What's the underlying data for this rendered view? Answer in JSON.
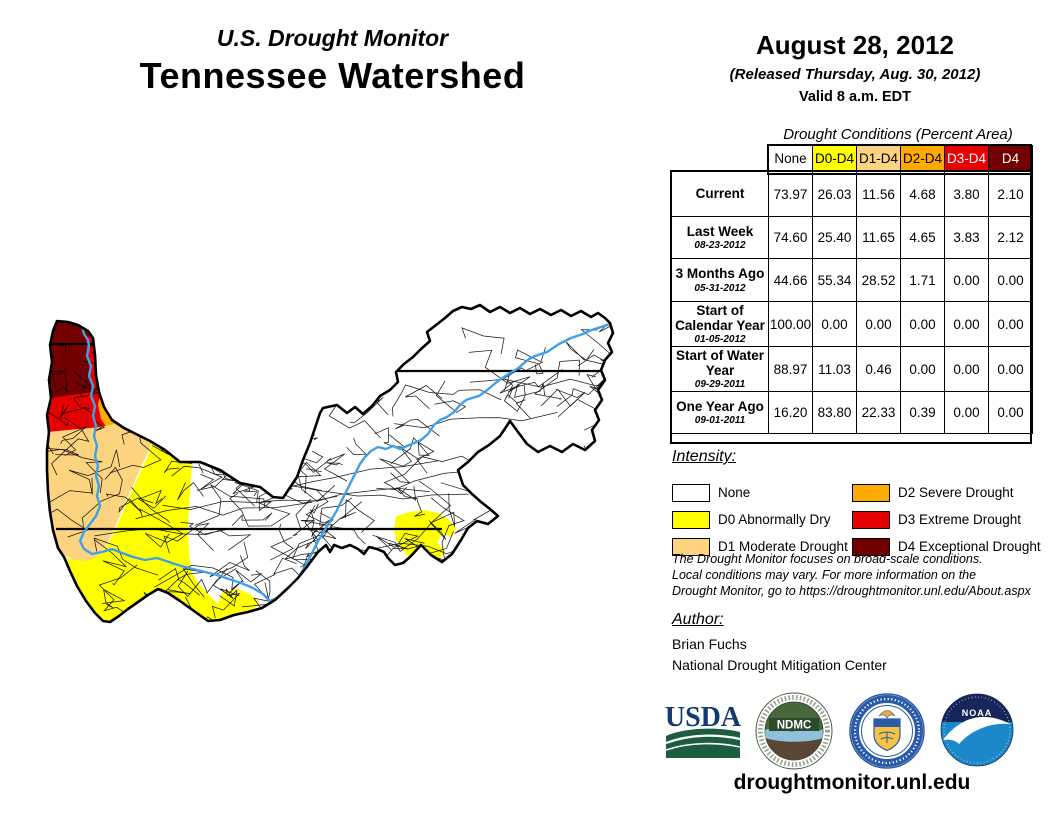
{
  "title": {
    "line1": "U.S. Drought Monitor",
    "line2": "Tennessee Watershed"
  },
  "date_block": {
    "date": "August 28, 2012",
    "released": "(Released Thursday, Aug. 30, 2012)",
    "valid": "Valid 8 a.m. EDT"
  },
  "table": {
    "caption": "Drought Conditions (Percent Area)",
    "columns": [
      "None",
      "D0-D4",
      "D1-D4",
      "D2-D4",
      "D3-D4",
      "D4"
    ],
    "column_keys": [
      "none",
      "d0",
      "d1",
      "d2",
      "d3",
      "d4"
    ],
    "rows": [
      {
        "label": "Current",
        "date": "",
        "values": [
          "73.97",
          "26.03",
          "11.56",
          "4.68",
          "3.80",
          "2.10"
        ]
      },
      {
        "label": "Last Week",
        "date": "08-23-2012",
        "values": [
          "74.60",
          "25.40",
          "11.65",
          "4.65",
          "3.83",
          "2.12"
        ]
      },
      {
        "label": "3 Months Ago",
        "date": "05-31-2012",
        "values": [
          "44.66",
          "55.34",
          "28.52",
          "1.71",
          "0.00",
          "0.00"
        ]
      },
      {
        "label": "Start of Calendar Year",
        "date": "01-05-2012",
        "values": [
          "100.00",
          "0.00",
          "0.00",
          "0.00",
          "0.00",
          "0.00"
        ]
      },
      {
        "label": "Start of Water Year",
        "date": "09-29-2011",
        "values": [
          "88.97",
          "11.03",
          "0.46",
          "0.00",
          "0.00",
          "0.00"
        ]
      },
      {
        "label": "One Year Ago",
        "date": "09-01-2011",
        "values": [
          "16.20",
          "83.80",
          "22.33",
          "0.39",
          "0.00",
          "0.00"
        ]
      }
    ]
  },
  "legend": {
    "title": "Intensity:",
    "items": [
      {
        "key": "none",
        "label": "None"
      },
      {
        "key": "d0",
        "label": "D0 Abnormally Dry"
      },
      {
        "key": "d1",
        "label": "D1 Moderate Drought"
      },
      {
        "key": "d2",
        "label": "D2 Severe Drought"
      },
      {
        "key": "d3",
        "label": "D3 Extreme Drought"
      },
      {
        "key": "d4",
        "label": "D4 Exceptional Drought"
      }
    ]
  },
  "disclaimer_lines": [
    "The Drought Monitor focuses on broad-scale conditions.",
    "Local conditions may vary. For more information on the",
    "Drought Monitor, go to https://droughtmonitor.unl.edu/About.aspx"
  ],
  "author": {
    "title": "Author:",
    "name": "Brian Fuchs",
    "org": "National Drought Mitigation Center"
  },
  "logos": {
    "usda": "USDA",
    "ndmc": "NDMC",
    "noaa": "NOAA"
  },
  "website": "droughtmonitor.unl.edu",
  "colors": {
    "none": "#FFFFFF",
    "d0": "#FFFF00",
    "d1": "#FCD37F",
    "d2": "#FFAA00",
    "d3": "#E60000",
    "d4": "#730000",
    "river": "#3FA0E8",
    "light_text": "#FFFFFF",
    "dark_text": "#000000"
  }
}
